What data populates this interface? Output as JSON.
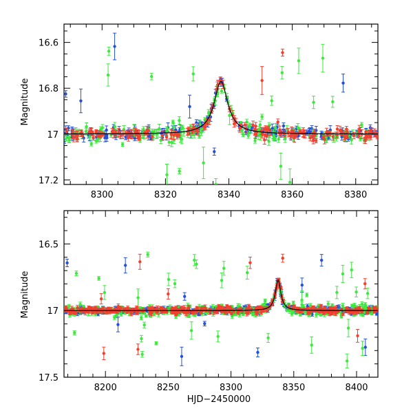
{
  "chart_data": [
    {
      "type": "scatter",
      "title": "",
      "xlabel": "",
      "ylabel": "Magnitude",
      "xlim": [
        8288,
        8387
      ],
      "ylim": [
        17.22,
        16.52
      ],
      "y_inverted": true,
      "x_ticks": [
        8300,
        8320,
        8340,
        8360,
        8380
      ],
      "x_tick_labels": [
        "8300",
        "8320",
        "8340",
        "8360",
        "8380"
      ],
      "y_ticks": [
        16.6,
        16.8,
        17,
        17.2
      ],
      "y_tick_labels": [
        "16.6",
        "16.8",
        "17",
        "17.2"
      ],
      "grid": false,
      "error_bars": true,
      "series": [
        {
          "color": "#2450d8"
        },
        {
          "color": "#3ee83e"
        },
        {
          "color": "#f04030"
        }
      ]
    },
    {
      "type": "scatter",
      "title": "",
      "xlabel": "HJD−2450000",
      "ylabel": "Magnitude",
      "xlim": [
        8167,
        8417
      ],
      "ylim": [
        17.5,
        16.25
      ],
      "y_inverted": true,
      "x_ticks": [
        8200,
        8250,
        8300,
        8350,
        8400
      ],
      "x_tick_labels": [
        "8200",
        "8250",
        "8300",
        "8350",
        "8400"
      ],
      "y_ticks": [
        16.5,
        17,
        17.5
      ],
      "y_tick_labels": [
        "16.5",
        "17",
        "17.5"
      ],
      "grid": false,
      "error_bars": true,
      "series": [
        {
          "color": "#2450d8"
        },
        {
          "color": "#3ee83e"
        },
        {
          "color": "#f04030"
        }
      ]
    }
  ]
}
